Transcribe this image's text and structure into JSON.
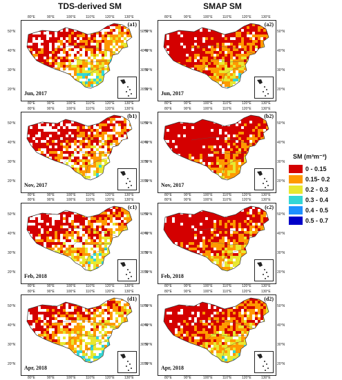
{
  "columns": {
    "left_title": "TDS-derived SM",
    "right_title": "SMAP SM"
  },
  "lon_ticks": [
    "80°E",
    "90°E",
    "100°E",
    "110°E",
    "120°E",
    "130°E"
  ],
  "lat_ticks": [
    "50°N",
    "40°N",
    "30°N",
    "20°N"
  ],
  "panels": [
    {
      "label": "(a1)",
      "date": "Jun, 2017",
      "dataset": "TDS"
    },
    {
      "label": "(a2)",
      "date": "Jun, 2017",
      "dataset": "SMAP"
    },
    {
      "label": "(b1)",
      "date": "Nov, 2017",
      "dataset": "TDS"
    },
    {
      "label": "(b2)",
      "date": "Nov, 2017",
      "dataset": "SMAP"
    },
    {
      "label": "(c1)",
      "date": "Feb, 2018",
      "dataset": "TDS"
    },
    {
      "label": "(c2)",
      "date": "Feb, 2018",
      "dataset": "SMAP"
    },
    {
      "label": "(d1)",
      "date": "Apr, 2018",
      "dataset": "TDS"
    },
    {
      "label": "(d2)",
      "date": "Apr, 2018",
      "dataset": "SMAP"
    }
  ],
  "legend": {
    "title": "SM (m³m⁻³)",
    "items": [
      {
        "label": "0 - 0.15",
        "color": "#d40000"
      },
      {
        "label": "0.15- 0.2",
        "color": "#ff9900"
      },
      {
        "label": "0.2 - 0.3",
        "color": "#e8e830"
      },
      {
        "label": "0.3 - 0.4",
        "color": "#33d6d6"
      },
      {
        "label": "0.4 - 0.5",
        "color": "#1e90ff"
      },
      {
        "label": "0.5 - 0.7",
        "color": "#0000c8"
      }
    ]
  }
}
